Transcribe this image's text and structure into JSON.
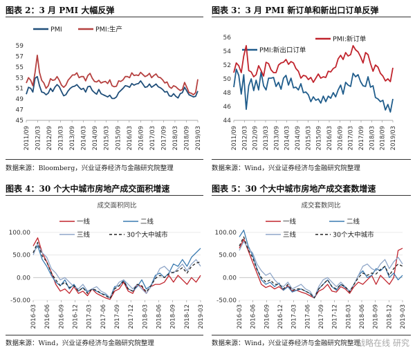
{
  "panels": [
    {
      "id": "p1",
      "title": "图表 2：3 月 PMI 大幅反弹",
      "source": "数据来源：Bloomberg，兴业证券经济与金融研究院整理",
      "chart_data": {
        "type": "line",
        "title": "",
        "legend": "top-left",
        "ylim": [
          45,
          59
        ],
        "yticks": [
          45,
          47,
          49,
          51,
          53,
          55,
          57,
          59
        ],
        "x_tick_labels": [
          "2011/09",
          "2012/03",
          "2012/09",
          "2013/03",
          "2013/09",
          "2014/03",
          "2014/09",
          "2015/03",
          "2015/09",
          "2016/03",
          "2016/09",
          "2017/03",
          "2017/09",
          "2018/03",
          "2018/09",
          "2019/03"
        ],
        "series": [
          {
            "name": "PMI",
            "color": "#1f4e79",
            "values": [
              49.9,
              51.2,
              51.0,
              50.3,
              52.9,
              53.2,
              51.5,
              50.3,
              50.2,
              49.8,
              50.1,
              51.0,
              50.4,
              51.2,
              51.7,
              51.3,
              50.4,
              49.6,
              49.8,
              50.5,
              51.0,
              51.3,
              51.4,
              51.7,
              51.2,
              50.8,
              51.0,
              50.3,
              51.3,
              51.4,
              50.6,
              50.2,
              49.9,
              50.8,
              50.0,
              49.8,
              49.6,
              49.4,
              49.7,
              49.1,
              49.1,
              49.4,
              50.2,
              50.6,
              51.0,
              51.5,
              51.4,
              51.2,
              51.9,
              51.6,
              51.8,
              51.9,
              52.4,
              51.8,
              51.2,
              51.3,
              51.8,
              51.2,
              51.5,
              51.8,
              51.3,
              51.1,
              50.8,
              50.3,
              50.4,
              49.6,
              49.5,
              50.0,
              49.5,
              49.2,
              50.0,
              50.2,
              51.2,
              50.5,
              49.8,
              49.6,
              49.4,
              49.5,
              50.5
            ]
          },
          {
            "name": "PMI:生产",
            "color": "#b5403f",
            "values": [
              52.0,
              53.0,
              52.5,
              51.5,
              54.0,
              57.2,
              54.0,
              52.5,
              52.0,
              51.0,
              51.5,
              52.8,
              52.5,
              52.6,
              53.2,
              52.5,
              51.6,
              51.2,
              51.6,
              52.5,
              53.0,
              53.5,
              53.5,
              53.9,
              53.0,
              53.2,
              53.2,
              52.4,
              53.4,
              53.8,
              52.9,
              52.3,
              52.2,
              52.5,
              52.0,
              52.2,
              52.3,
              51.9,
              52.6,
              51.5,
              51.3,
              51.4,
              52.4,
              52.3,
              52.6,
              53.2,
              53.2,
              53.0,
              53.9,
              53.4,
              53.5,
              53.4,
              54.0,
              53.6,
              53.2,
              53.4,
              53.8,
              53.0,
              53.4,
              53.7,
              53.1,
              53.0,
              52.6,
              52.0,
              52.2,
              51.3,
              51.0,
              51.5,
              51.3,
              50.9,
              50.6,
              50.8,
              52.1,
              51.2,
              50.2,
              50.1,
              49.8,
              50.2,
              52.7
            ]
          }
        ]
      }
    },
    {
      "id": "p2",
      "title": "图表 3：3 月 PMI 新订单和新出口订单反弹",
      "source": "数据来源：Wind，兴业证券经济与金融研究院整理",
      "chart_data": {
        "type": "line",
        "title": "",
        "legend": "top",
        "ylim": [
          44,
          56
        ],
        "yticks": [
          44,
          46,
          48,
          50,
          52,
          54,
          56
        ],
        "x_tick_labels": [
          "2011/09",
          "2012/03",
          "2012/09",
          "2013/03",
          "2013/09",
          "2014/03",
          "2014/09",
          "2015/03",
          "2015/09",
          "2016/03",
          "2016/09",
          "2017/03",
          "2017/09",
          "2018/03",
          "2018/09",
          "2019/03"
        ],
        "series": [
          {
            "name": "PMI:新出口订单",
            "color": "#1f5c8b",
            "values": [
              48.8,
              51.4,
              50.5,
              47.8,
              50.6,
              45.6,
              49.0,
              50.0,
              48.3,
              49.8,
              48.4,
              51.0,
              49.0,
              48.4,
              50.1,
              50.1,
              50.2,
              48.9,
              49.5,
              48.5,
              50.1,
              50.5,
              49.1,
              50.1,
              48.7,
              48.8,
              48.4,
              49.3,
              48.0,
              48.1,
              47.7,
              46.7,
              47.4,
              46.9,
              47.1,
              46.5,
              47.5,
              46.7,
              47.5,
              47.2,
              48.0,
              47.4,
              48.4,
              49.1,
              47.8,
              49.5,
              49.1,
              48.9,
              50.8,
              50.3,
              50.6,
              49.6,
              49.0,
              48.9,
              50.3,
              48.8,
              49.0,
              47.3,
              47.1,
              46.7,
              46.9,
              45.5,
              46.3,
              45.2,
              47.1
            ]
          },
          {
            "name": "PMI:新订单",
            "color": "#c0232c",
            "values": [
              50.9,
              52.3,
              51.9,
              50.9,
              53.3,
              54.8,
              51.2,
              51.0,
              50.3,
              50.6,
              51.9,
              51.2,
              50.4,
              52.4,
              52.2,
              51.3,
              50.9,
              50.9,
              52.0,
              52.3,
              52.4,
              52.8,
              52.1,
              52.5,
              52.3,
              51.5,
              51.1,
              50.1,
              50.5,
              50.4,
              49.9,
              50.2,
              49.5,
              50.1,
              50.7,
              50.1,
              50.3,
              50.2,
              51.1,
              51.0,
              51.5,
              51.7,
              52.9,
              53.4,
              52.8,
              53.8,
              53.3,
              53.5,
              54.8,
              54.2,
              53.9,
              53.2,
              52.3,
              53.8,
              53.5,
              52.2,
              51.1,
              52.0,
              51.7,
              50.8,
              50.4,
              49.7,
              50.0,
              49.6,
              51.6
            ]
          }
        ]
      }
    },
    {
      "id": "p3",
      "title": "图表 4：30 个大中城市房地产成交面积增速",
      "source": "数据来源：Wind，兴业证券经济与金融研究院整理",
      "chart_data": {
        "type": "line",
        "title": "成交面积同比",
        "legend": "top",
        "ylim": [
          -50,
          100
        ],
        "yticks": [
          -50,
          0,
          50,
          100
        ],
        "ytick_labels": [
          "-50.00",
          "0.00",
          "50.00",
          "100.00"
        ],
        "x_tick_labels": [
          "2016-03",
          "2016-06",
          "2016-09",
          "2016-12",
          "2017-03",
          "2017-06",
          "2017-09",
          "2017-12",
          "2018-03",
          "2018-06",
          "2018-09",
          "2018-12",
          "2019-03"
        ],
        "series": [
          {
            "name": "一线",
            "color": "#c0232c",
            "dash": "",
            "values": [
              70,
              88,
              55,
              35,
              12,
              -15,
              -30,
              -25,
              -35,
              -20,
              -35,
              -30,
              -40,
              -25,
              -35,
              -40,
              -45,
              -48,
              -30,
              -25,
              -10,
              -30,
              -35,
              -15,
              -20,
              -35,
              -20,
              -15,
              -15,
              -10,
              5,
              -10,
              5,
              -5,
              -15,
              0,
              -10,
              5
            ]
          },
          {
            "name": "二线",
            "color": "#3a7ab0",
            "dash": "",
            "values": [
              55,
              70,
              40,
              25,
              5,
              -10,
              -18,
              -5,
              -25,
              -15,
              -30,
              -22,
              -32,
              -25,
              -30,
              -35,
              -38,
              -45,
              -20,
              -18,
              -5,
              -25,
              -30,
              -20,
              -5,
              -25,
              -18,
              5,
              10,
              0,
              10,
              30,
              25,
              40,
              25,
              45,
              55,
              65
            ]
          },
          {
            "name": "三线",
            "color": "#8fa6c8",
            "dash": "",
            "values": [
              50,
              75,
              55,
              45,
              20,
              10,
              -5,
              0,
              -10,
              -20,
              -25,
              -15,
              -30,
              -25,
              -20,
              -30,
              -35,
              -45,
              -25,
              -10,
              -5,
              -15,
              -25,
              -15,
              -25,
              -35,
              -20,
              0,
              20,
              25,
              15,
              10,
              20,
              30,
              15,
              30,
              40,
              25
            ]
          },
          {
            "name": "30个大中城市",
            "color": "#222222",
            "dash": "4,3",
            "values": [
              55,
              78,
              48,
              35,
              10,
              -5,
              -18,
              -10,
              -22,
              -18,
              -30,
              -22,
              -35,
              -25,
              -28,
              -35,
              -40,
              -46,
              -25,
              -18,
              -8,
              -25,
              -30,
              -15,
              -18,
              -32,
              -18,
              -2,
              5,
              0,
              8,
              12,
              15,
              22,
              10,
              25,
              32,
              35
            ]
          }
        ]
      }
    },
    {
      "id": "p4",
      "title": "图表 5：30 个大中城市房地产成交套数增速",
      "source": "数据来源：Wind，兴业证券经济与金融研究院整理",
      "chart_data": {
        "type": "line",
        "title": "成交套数同比",
        "legend": "top",
        "ylim": [
          -50,
          100
        ],
        "yticks": [
          -50,
          0,
          50,
          100
        ],
        "ytick_labels": [
          "-50.00",
          "0.00",
          "50.00",
          "100.00"
        ],
        "x_tick_labels": [
          "2016-03",
          "2016-06",
          "2016-09",
          "2016-12",
          "2017-03",
          "2017-06",
          "2017-09",
          "2017-12",
          "2018-03",
          "2018-06",
          "2018-09",
          "2018-12",
          "2019-03"
        ],
        "series": [
          {
            "name": "一线",
            "color": "#c0232c",
            "dash": "",
            "values": [
              65,
              85,
              60,
              35,
              10,
              -15,
              -22,
              -18,
              -25,
              -20,
              -28,
              -18,
              -30,
              -28,
              -32,
              -35,
              -40,
              -45,
              -30,
              -25,
              -15,
              -30,
              -32,
              -20,
              -25,
              -35,
              -20,
              -10,
              -15,
              -5,
              5,
              -15,
              5,
              -5,
              -15,
              0,
              60,
              65
            ]
          },
          {
            "name": "二线",
            "color": "#3a7ab0",
            "dash": "",
            "values": [
              90,
              105,
              70,
              50,
              20,
              -5,
              -15,
              -10,
              -20,
              -12,
              -28,
              -20,
              -32,
              -28,
              -25,
              -30,
              -35,
              -45,
              -25,
              -15,
              -5,
              -20,
              -28,
              -15,
              -22,
              -30,
              -15,
              5,
              15,
              0,
              5,
              20,
              15,
              25,
              0,
              10,
              -5,
              5
            ]
          },
          {
            "name": "三线",
            "color": "#8fa6c8",
            "dash": "",
            "values": [
              60,
              80,
              65,
              55,
              30,
              15,
              5,
              10,
              -5,
              -15,
              -20,
              -10,
              -25,
              -20,
              -15,
              -25,
              -30,
              -45,
              -20,
              -5,
              0,
              -10,
              -20,
              -10,
              -20,
              -30,
              -15,
              5,
              25,
              30,
              20,
              15,
              30,
              40,
              20,
              35,
              45,
              30
            ]
          },
          {
            "name": "30个大中城市",
            "color": "#222222",
            "dash": "4,3",
            "values": [
              70,
              90,
              62,
              45,
              18,
              0,
              -10,
              -5,
              -15,
              -15,
              -25,
              -15,
              -28,
              -25,
              -25,
              -30,
              -35,
              -45,
              -25,
              -15,
              -5,
              -20,
              -25,
              -15,
              -20,
              -32,
              -15,
              0,
              10,
              5,
              10,
              8,
              18,
              25,
              5,
              20,
              30,
              25
            ]
          }
        ]
      }
    }
  ],
  "watermark": "战略在线 研究"
}
